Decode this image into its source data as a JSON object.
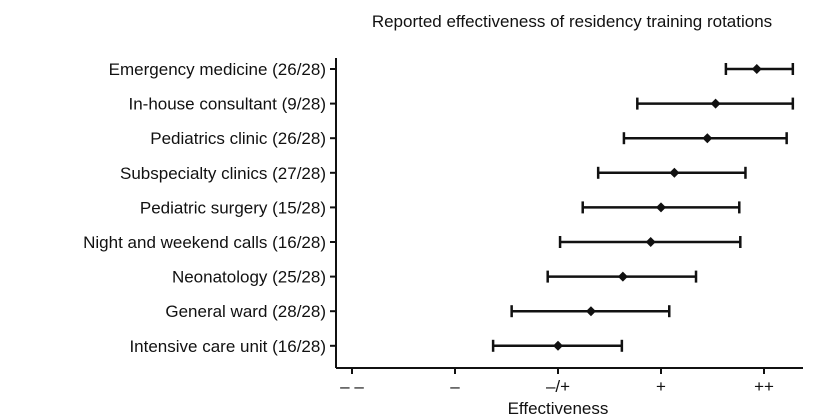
{
  "chart_data": {
    "type": "scatter",
    "title": "Reported effectiveness of residency training rotations",
    "xlabel": "Effectiveness",
    "ylabel": "",
    "xlim": [
      -2.15,
      2.15
    ],
    "x_ticks": [
      {
        "value": -2,
        "label": "– –"
      },
      {
        "value": -1,
        "label": "–"
      },
      {
        "value": 0,
        "label": "–/+"
      },
      {
        "value": 1,
        "label": "+"
      },
      {
        "value": 2,
        "label": "++"
      }
    ],
    "grid": false,
    "legend": "none",
    "categories": [
      "Emergency medicine (26/28)",
      "In-house consultant (9/28)",
      "Pediatrics clinic (26/28)",
      "Subspecialty clinics (27/28)",
      "Pediatric surgery (15/28)",
      "Night and weekend calls (16/28)",
      "Neonatology (25/28)",
      "General ward (28/28)",
      "Intensive care unit (16/28)"
    ],
    "series": [
      {
        "mean": [
          1.93,
          1.53,
          1.45,
          1.13,
          1.0,
          0.9,
          0.63,
          0.32,
          0.0
        ],
        "low": [
          1.63,
          0.77,
          0.64,
          0.39,
          0.24,
          0.02,
          -0.1,
          -0.45,
          -0.63
        ],
        "high": [
          2.28,
          2.28,
          2.22,
          1.82,
          1.76,
          1.77,
          1.34,
          1.08,
          0.62
        ]
      }
    ]
  }
}
